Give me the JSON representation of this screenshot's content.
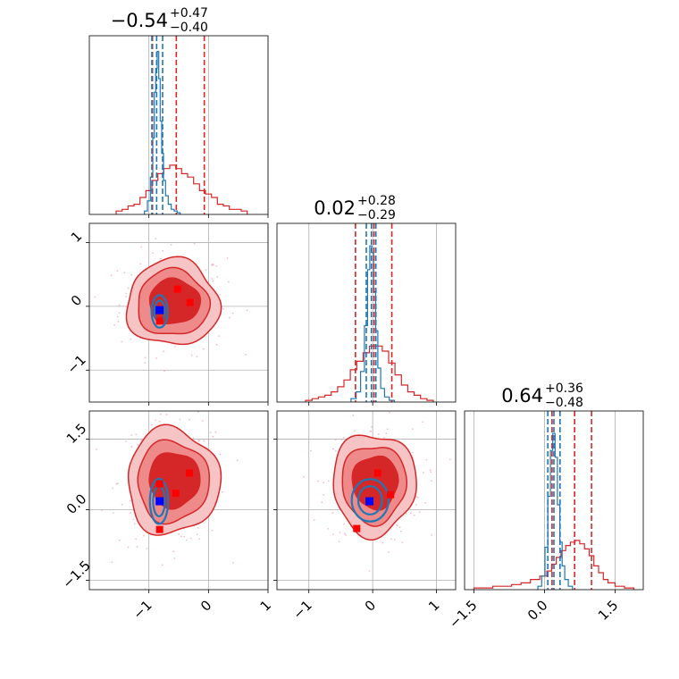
{
  "chart_data": {
    "type": "corner",
    "grid": true,
    "colors": {
      "prior": "#d62728",
      "posterior": "#1f77b4",
      "prior_fill": [
        "#f6c4c4",
        "#ee8a8a",
        "#d62728"
      ],
      "scatter": "#e8a3c0",
      "truth_marker": "#0000ff",
      "sample_marker": "#ff0000"
    },
    "parameters": [
      {
        "title_value": "−0.54",
        "title_plus": "+0.47",
        "title_minus": "−0.40",
        "range": [
          -2.0,
          1.0
        ],
        "ticks": [
          -1,
          0,
          1
        ],
        "tick_labels": [
          "−1",
          "0",
          "1"
        ],
        "prior_quantiles": [
          -0.94,
          -0.54,
          -0.07
        ],
        "posterior_quantiles": [
          -0.95,
          -0.87,
          -0.77
        ],
        "prior_hist": [
          [
            -1.5,
            0.02
          ],
          [
            -1.4,
            0.03
          ],
          [
            -1.3,
            0.05
          ],
          [
            -1.2,
            0.06
          ],
          [
            -1.1,
            0.1
          ],
          [
            -1.0,
            0.14
          ],
          [
            -0.9,
            0.2
          ],
          [
            -0.8,
            0.24
          ],
          [
            -0.7,
            0.27
          ],
          [
            -0.6,
            0.29
          ],
          [
            -0.5,
            0.27
          ],
          [
            -0.4,
            0.24
          ],
          [
            -0.3,
            0.22
          ],
          [
            -0.2,
            0.18
          ],
          [
            -0.1,
            0.14
          ],
          [
            0.0,
            0.12
          ],
          [
            0.1,
            0.1
          ],
          [
            0.2,
            0.06
          ],
          [
            0.3,
            0.05
          ],
          [
            0.4,
            0.03
          ],
          [
            0.5,
            0.03
          ],
          [
            0.6,
            0.02
          ]
        ],
        "posterior_hist": [
          [
            -1.05,
            0.02
          ],
          [
            -1.0,
            0.08
          ],
          [
            -0.95,
            0.22
          ],
          [
            -0.92,
            0.45
          ],
          [
            -0.9,
            0.72
          ],
          [
            -0.87,
            0.86
          ],
          [
            -0.85,
            0.96
          ],
          [
            -0.82,
            0.8
          ],
          [
            -0.8,
            0.55
          ],
          [
            -0.77,
            0.36
          ],
          [
            -0.74,
            0.2
          ],
          [
            -0.7,
            0.11
          ],
          [
            -0.65,
            0.06
          ],
          [
            -0.6,
            0.03
          ],
          [
            -0.55,
            0.02
          ],
          [
            -0.5,
            0.01
          ]
        ]
      },
      {
        "title_value": "0.02",
        "title_plus": "+0.28",
        "title_minus": "−0.29",
        "range": [
          -1.5,
          1.3
        ],
        "ticks": [
          -1,
          0,
          1
        ],
        "tick_labels": [
          "−1",
          "0",
          "1"
        ],
        "prior_quantiles": [
          -0.27,
          0.02,
          0.3
        ],
        "posterior_quantiles": [
          -0.1,
          -0.02,
          0.05
        ],
        "prior_hist": [
          [
            -1.0,
            0.01
          ],
          [
            -0.9,
            0.02
          ],
          [
            -0.8,
            0.03
          ],
          [
            -0.7,
            0.04
          ],
          [
            -0.6,
            0.06
          ],
          [
            -0.5,
            0.09
          ],
          [
            -0.4,
            0.13
          ],
          [
            -0.3,
            0.19
          ],
          [
            -0.2,
            0.24
          ],
          [
            -0.1,
            0.29
          ],
          [
            0.0,
            0.33
          ],
          [
            0.1,
            0.33
          ],
          [
            0.2,
            0.3
          ],
          [
            0.3,
            0.23
          ],
          [
            0.4,
            0.16
          ],
          [
            0.5,
            0.1
          ],
          [
            0.6,
            0.06
          ],
          [
            0.7,
            0.04
          ],
          [
            0.8,
            0.02
          ],
          [
            0.9,
            0.01
          ]
        ],
        "posterior_hist": [
          [
            -0.3,
            0.02
          ],
          [
            -0.22,
            0.06
          ],
          [
            -0.16,
            0.18
          ],
          [
            -0.1,
            0.45
          ],
          [
            -0.06,
            0.78
          ],
          [
            -0.03,
            0.92
          ],
          [
            0.0,
            0.88
          ],
          [
            0.03,
            0.65
          ],
          [
            0.06,
            0.42
          ],
          [
            0.1,
            0.2
          ],
          [
            0.15,
            0.08
          ],
          [
            0.22,
            0.03
          ],
          [
            0.3,
            0.01
          ]
        ]
      },
      {
        "title_value": "0.64",
        "title_plus": "+0.36",
        "title_minus": "−0.48",
        "range": [
          -1.7,
          2.1
        ],
        "ticks": [
          -1.5,
          0.0,
          1.5
        ],
        "tick_labels": [
          "−1.5",
          "0.0",
          "1.5"
        ],
        "prior_quantiles": [
          0.16,
          0.64,
          1.0
        ],
        "posterior_quantiles": [
          0.07,
          0.2,
          0.33
        ],
        "prior_hist": [
          [
            -1.4,
            0.01
          ],
          [
            -1.2,
            0.01
          ],
          [
            -1.0,
            0.02
          ],
          [
            -0.8,
            0.02
          ],
          [
            -0.6,
            0.03
          ],
          [
            -0.4,
            0.04
          ],
          [
            -0.2,
            0.06
          ],
          [
            0.0,
            0.08
          ],
          [
            0.1,
            0.11
          ],
          [
            0.2,
            0.15
          ],
          [
            0.3,
            0.19
          ],
          [
            0.4,
            0.23
          ],
          [
            0.5,
            0.26
          ],
          [
            0.6,
            0.28
          ],
          [
            0.7,
            0.29
          ],
          [
            0.8,
            0.27
          ],
          [
            0.9,
            0.24
          ],
          [
            1.0,
            0.2
          ],
          [
            1.1,
            0.14
          ],
          [
            1.2,
            0.1
          ],
          [
            1.3,
            0.06
          ],
          [
            1.4,
            0.04
          ],
          [
            1.6,
            0.02
          ],
          [
            1.8,
            0.01
          ]
        ],
        "posterior_hist": [
          [
            -0.1,
            0.02
          ],
          [
            -0.02,
            0.08
          ],
          [
            0.04,
            0.25
          ],
          [
            0.1,
            0.55
          ],
          [
            0.15,
            0.82
          ],
          [
            0.2,
            0.92
          ],
          [
            0.25,
            0.78
          ],
          [
            0.3,
            0.5
          ],
          [
            0.35,
            0.28
          ],
          [
            0.4,
            0.14
          ],
          [
            0.46,
            0.06
          ],
          [
            0.55,
            0.02
          ]
        ]
      }
    ],
    "pairs": [
      {
        "x": 0,
        "y": 1,
        "prior_center": [
          -0.6,
          0.05
        ],
        "prior_spread": [
          0.5,
          0.45
        ],
        "posterior_center": [
          -0.82,
          -0.08
        ],
        "posterior_spread": [
          0.08,
          0.17
        ],
        "truth": [
          -0.82,
          -0.06
        ],
        "samples": [
          [
            -0.52,
            0.27
          ],
          [
            -0.31,
            0.06
          ],
          [
            -0.82,
            -0.23
          ]
        ]
      },
      {
        "x": 0,
        "y": 2,
        "prior_center": [
          -0.6,
          0.6
        ],
        "prior_spread": [
          0.5,
          0.75
        ],
        "posterior_center": [
          -0.83,
          0.18
        ],
        "posterior_spread": [
          0.09,
          0.32
        ],
        "truth": [
          -0.82,
          0.18
        ],
        "samples": [
          [
            -0.32,
            0.78
          ],
          [
            -0.55,
            0.35
          ],
          [
            -0.82,
            0.55
          ],
          [
            -0.82,
            -0.42
          ]
        ]
      },
      {
        "x": 1,
        "y": 2,
        "prior_center": [
          0.02,
          0.55
        ],
        "prior_spread": [
          0.42,
          0.72
        ],
        "posterior_center": [
          -0.04,
          0.2
        ],
        "posterior_spread": [
          0.17,
          0.3
        ],
        "truth": [
          -0.05,
          0.18
        ],
        "samples": [
          [
            0.08,
            0.78
          ],
          [
            0.28,
            0.32
          ],
          [
            -0.25,
            -0.4
          ]
        ]
      }
    ]
  }
}
